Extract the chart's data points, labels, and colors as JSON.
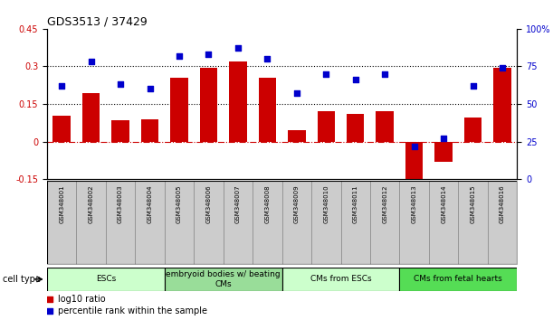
{
  "title": "GDS3513 / 37429",
  "samples": [
    "GSM348001",
    "GSM348002",
    "GSM348003",
    "GSM348004",
    "GSM348005",
    "GSM348006",
    "GSM348007",
    "GSM348008",
    "GSM348009",
    "GSM348010",
    "GSM348011",
    "GSM348012",
    "GSM348013",
    "GSM348014",
    "GSM348015",
    "GSM348016"
  ],
  "log10_ratio": [
    0.105,
    0.195,
    0.085,
    0.09,
    0.255,
    0.295,
    0.32,
    0.255,
    0.045,
    0.12,
    0.11,
    0.12,
    -0.175,
    -0.08,
    0.095,
    0.295
  ],
  "percentile_rank": [
    62,
    78,
    63,
    60,
    82,
    83,
    87,
    80,
    57,
    70,
    66,
    70,
    22,
    27,
    62,
    74
  ],
  "bar_color": "#cc0000",
  "dot_color": "#0000cc",
  "ylim_left": [
    -0.15,
    0.45
  ],
  "ylim_right": [
    0,
    100
  ],
  "yticks_left": [
    -0.15,
    0,
    0.15,
    0.3,
    0.45
  ],
  "yticks_right": [
    0,
    25,
    50,
    75,
    100
  ],
  "hlines": [
    0.15,
    0.3
  ],
  "cell_types": [
    {
      "label": "ESCs",
      "start": 0,
      "end": 4,
      "color": "#ccffcc"
    },
    {
      "label": "embryoid bodies w/ beating\nCMs",
      "start": 4,
      "end": 8,
      "color": "#99dd99"
    },
    {
      "label": "CMs from ESCs",
      "start": 8,
      "end": 12,
      "color": "#ccffcc"
    },
    {
      "label": "CMs from fetal hearts",
      "start": 12,
      "end": 16,
      "color": "#55dd55"
    }
  ],
  "legend_bar_label": "log10 ratio",
  "legend_dot_label": "percentile rank within the sample",
  "cell_type_label": "cell type",
  "tick_label_color_left": "#cc0000",
  "tick_label_color_right": "#0000cc",
  "label_grey": "#cccccc",
  "label_grey_edge": "#888888"
}
